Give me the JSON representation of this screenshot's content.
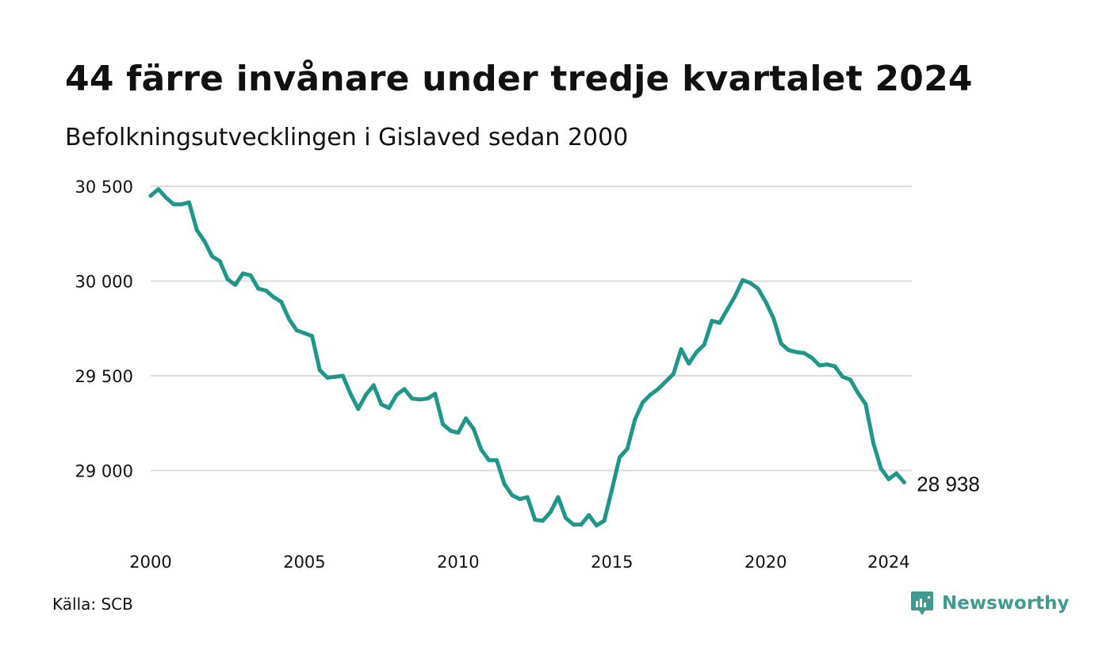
{
  "title": "44 färre invånare under tredje kvartalet 2024",
  "subtitle": "Befolkningsutvecklingen i Gislaved sedan 2000",
  "source": "Källa: SCB",
  "brand": {
    "name": "Newsworthy",
    "icon": "newsworthy-logo-icon"
  },
  "colors": {
    "line": "#1f968a",
    "grid": "#dcdcdc",
    "text": "#111111",
    "brand": "#3f9b90"
  },
  "chart_data": {
    "type": "line",
    "x_unit": "year (quarterly)",
    "ylim": [
      28700,
      30550
    ],
    "xlim": [
      2000,
      2025
    ],
    "yticks": [
      {
        "value": 29000,
        "label": "29 000"
      },
      {
        "value": 29500,
        "label": "29 500"
      },
      {
        "value": 30000,
        "label": "30 000"
      },
      {
        "value": 30500,
        "label": "30 500"
      }
    ],
    "xticks": [
      {
        "value": 2000,
        "label": "2000"
      },
      {
        "value": 2005,
        "label": "2005"
      },
      {
        "value": 2010,
        "label": "2010"
      },
      {
        "value": 2015,
        "label": "2015"
      },
      {
        "value": 2020,
        "label": "2020"
      },
      {
        "value": 2024,
        "label": "2024"
      }
    ],
    "grid": "horizontal",
    "end_label": "28 938",
    "series": [
      {
        "x": [
          2000.25,
          2000.5,
          2000.75,
          2001,
          2001.25,
          2001.5,
          2001.75,
          2002,
          2002.25,
          2002.5,
          2002.75,
          2003,
          2003.25,
          2003.5,
          2003.75,
          2004,
          2004.25,
          2004.5,
          2004.75,
          2005,
          2005.25,
          2005.5,
          2005.75,
          2006,
          2006.25,
          2006.5,
          2006.75,
          2007,
          2007.25,
          2007.5,
          2007.75,
          2008,
          2008.25,
          2008.5,
          2008.75,
          2009,
          2009.25,
          2009.5,
          2009.75,
          2010,
          2010.25,
          2010.5,
          2010.75,
          2011,
          2011.25,
          2011.5,
          2011.75,
          2012,
          2012.25,
          2012.5,
          2012.75,
          2013,
          2013.25,
          2013.5,
          2013.75,
          2014,
          2014.25,
          2014.5,
          2014.75,
          2015,
          2015.25,
          2015.5,
          2015.75,
          2016,
          2016.25,
          2016.5,
          2016.75,
          2017,
          2017.25,
          2017.5,
          2017.75,
          2018,
          2018.25,
          2018.5,
          2018.75,
          2019,
          2019.25,
          2019.5,
          2019.75,
          2020,
          2020.25,
          2020.5,
          2020.75,
          2021,
          2021.25,
          2021.5,
          2021.75,
          2022,
          2022.25,
          2022.5,
          2022.75,
          2023,
          2023.25,
          2023.5,
          2023.75,
          2024,
          2024.25,
          2024.5,
          2024.75
        ],
        "y": [
          30450,
          30485,
          30440,
          30405,
          30405,
          30415,
          30270,
          30210,
          30130,
          30105,
          30010,
          29980,
          30040,
          30030,
          29960,
          29950,
          29915,
          29890,
          29800,
          29740,
          29725,
          29710,
          29530,
          29490,
          29495,
          29500,
          29405,
          29325,
          29400,
          29450,
          29350,
          29330,
          29400,
          29430,
          29380,
          29375,
          29380,
          29405,
          29245,
          29210,
          29200,
          29275,
          29220,
          29110,
          29055,
          29055,
          28930,
          28870,
          28850,
          28860,
          28740,
          28735,
          28780,
          28860,
          28750,
          28715,
          28715,
          28765,
          28710,
          28735,
          28900,
          29070,
          29115,
          29270,
          29360,
          29400,
          29430,
          29470,
          29510,
          29640,
          29565,
          29625,
          29665,
          29790,
          29780,
          29850,
          29920,
          30005,
          29990,
          29960,
          29890,
          29805,
          29670,
          29635,
          29625,
          29620,
          29595,
          29555,
          29560,
          29550,
          29495,
          29480,
          29410,
          29350,
          29145,
          29010,
          28955,
          28985,
          28938
        ]
      }
    ]
  }
}
